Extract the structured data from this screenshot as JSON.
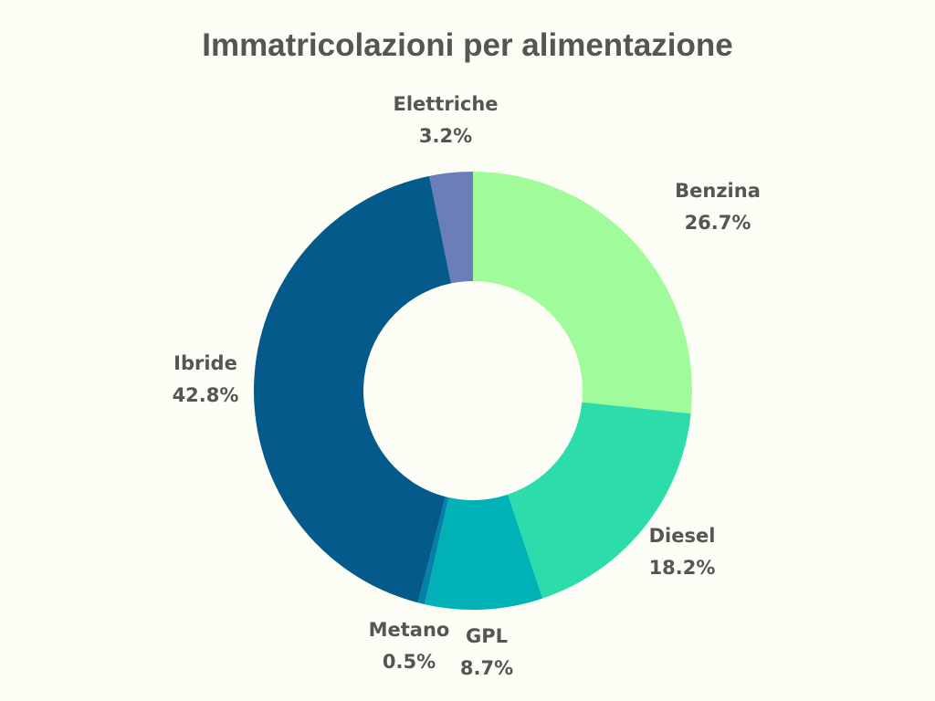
{
  "chart_data": {
    "type": "pie",
    "variant": "donut",
    "title": "Immatricolazioni per alimentazione",
    "slices": [
      {
        "label": "Benzina",
        "value": 26.7,
        "display": "26.7%",
        "color": "#a0fc9a"
      },
      {
        "label": "Diesel",
        "value": 18.2,
        "display": "18.2%",
        "color": "#2ddcab"
      },
      {
        "label": "GPL",
        "value": 8.7,
        "display": "8.7%",
        "color": "#00b2b6"
      },
      {
        "label": "Metano",
        "value": 0.5,
        "display": "0.5%",
        "color": "#0481a8"
      },
      {
        "label": "Ibride",
        "value": 42.8,
        "display": "42.8%",
        "color": "#035a8b"
      },
      {
        "label": "Elettriche",
        "value": 3.2,
        "display": "3.2%",
        "color": "#6a7fb7"
      }
    ],
    "start_angle": "12 o'clock",
    "direction": "clockwise",
    "legend": "none",
    "labels": "outside"
  },
  "colors": {
    "background": "#fcfdf4",
    "text": "#555555"
  }
}
